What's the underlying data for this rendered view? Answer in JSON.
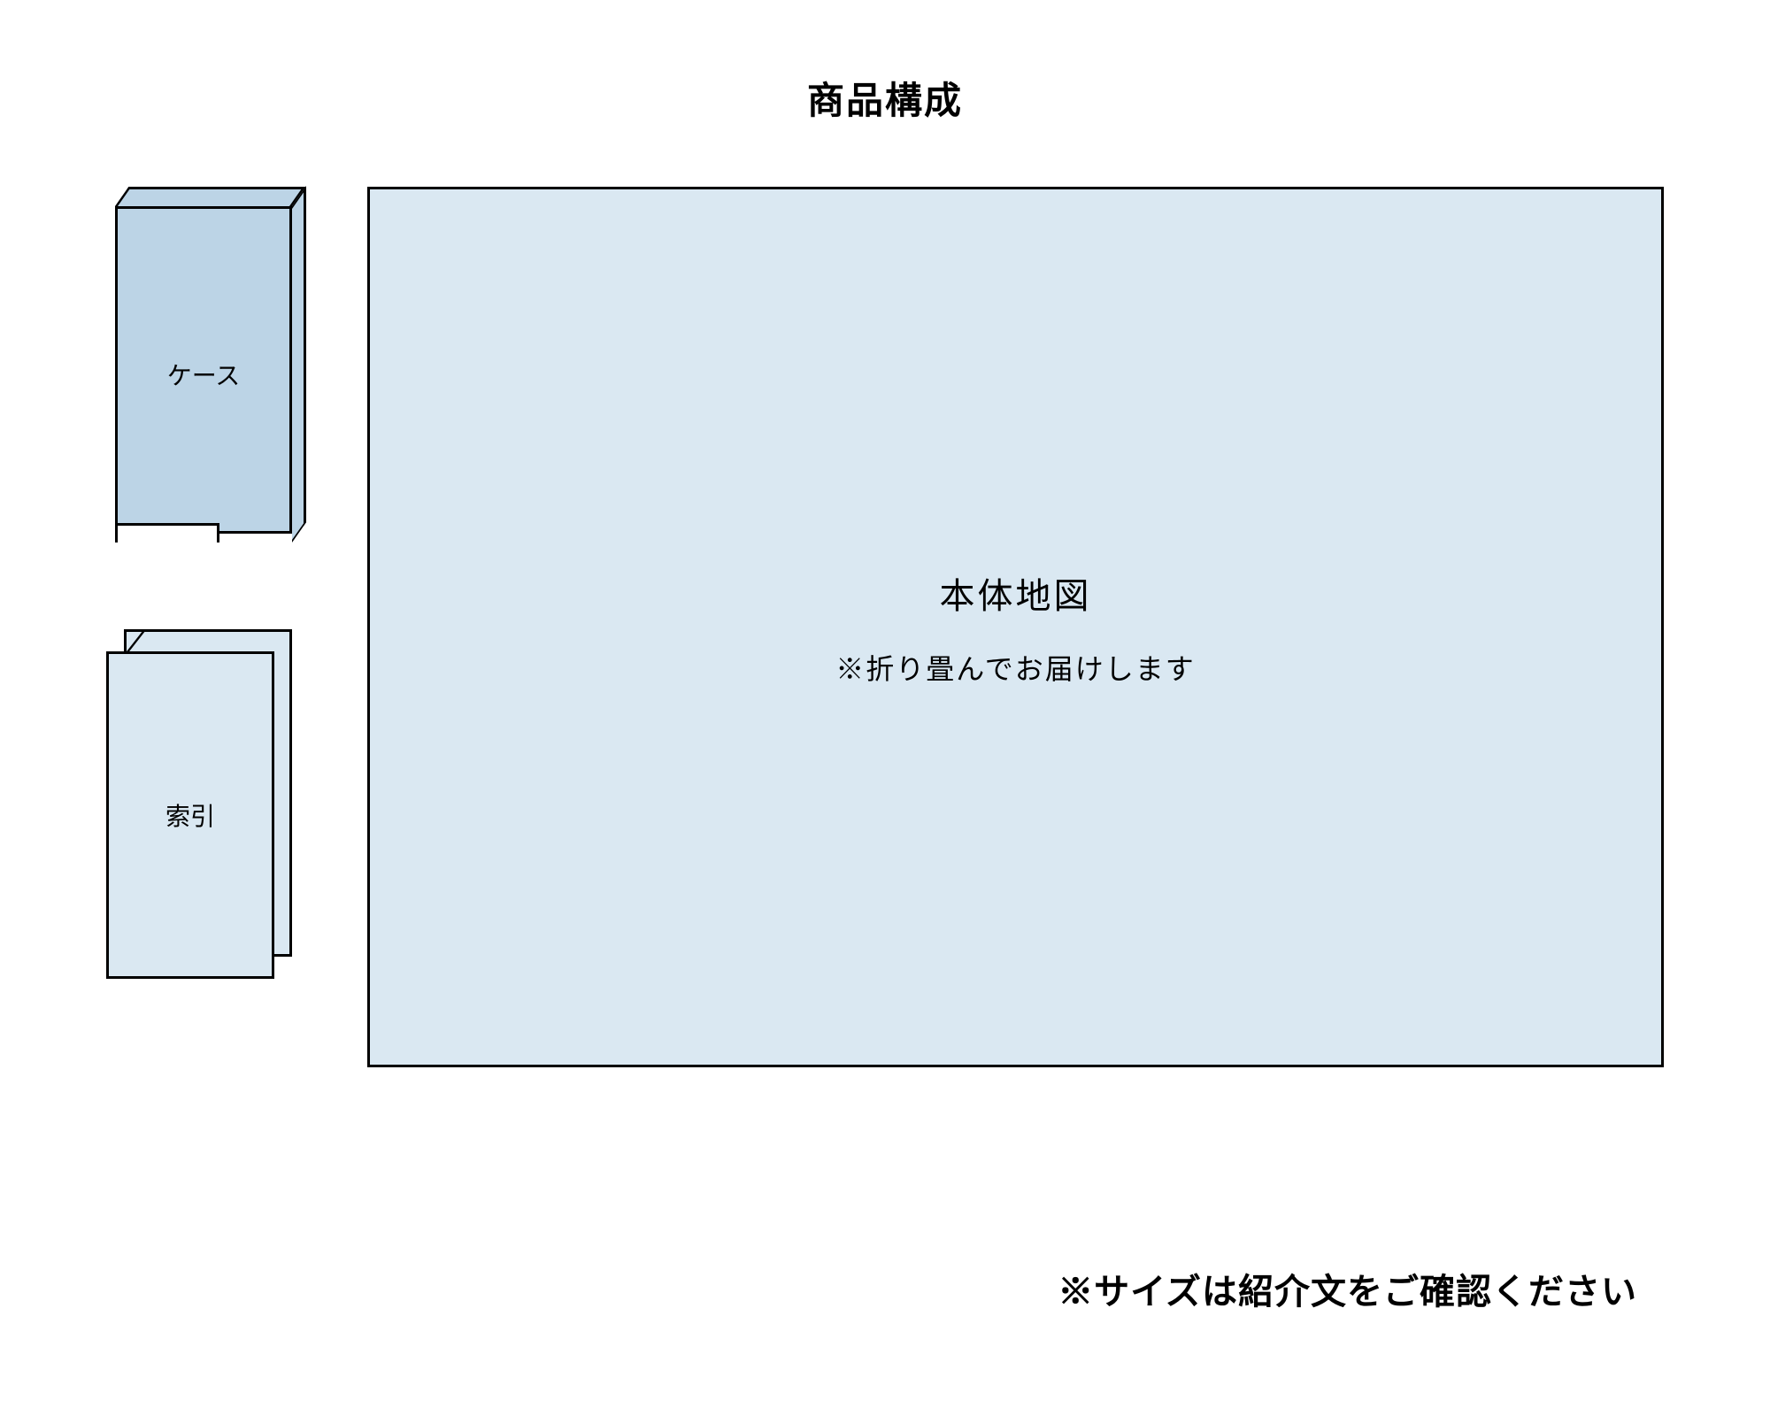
{
  "diagram": {
    "type": "infographic",
    "title": "商品構成",
    "background_color": "#ffffff",
    "panel_fill_darker": "#bcd4e6",
    "panel_fill": "#dae8f2",
    "border_color": "#000000",
    "border_width": 3,
    "text_color": "#000000",
    "title_fontsize": 42,
    "label_fontsize": 28,
    "map_title_fontsize": 40,
    "map_note_fontsize": 32,
    "footer_fontsize": 40,
    "components": {
      "case": {
        "label": "ケース"
      },
      "index": {
        "label": "索引"
      },
      "map": {
        "title": "本体地図",
        "note": "※折り畳んでお届けします"
      }
    },
    "footer_note": "※サイズは紹介文をご確認ください"
  }
}
